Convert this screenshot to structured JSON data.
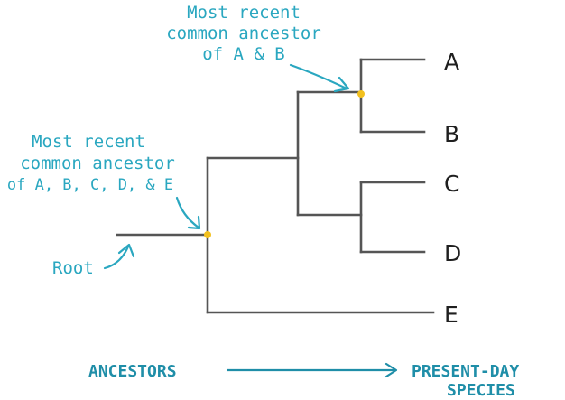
{
  "tips": {
    "a": "A",
    "b": "B",
    "c": "C",
    "d": "D",
    "e": "E"
  },
  "annotations": {
    "mrca_ab": [
      "Most recent",
      "common ancestor",
      "of A & B"
    ],
    "mrca_all": [
      "Most recent",
      "common ancestor",
      "of A, B, C, D, & E"
    ],
    "root": "Root"
  },
  "axis": {
    "from": "ANCESTORS",
    "to": [
      "PRESENT-DAY",
      "SPECIES"
    ]
  },
  "colors": {
    "branch": "#555555",
    "node": "#f2c01e",
    "annotation": "#2aa7c0",
    "axis": "#1f8ea8"
  }
}
